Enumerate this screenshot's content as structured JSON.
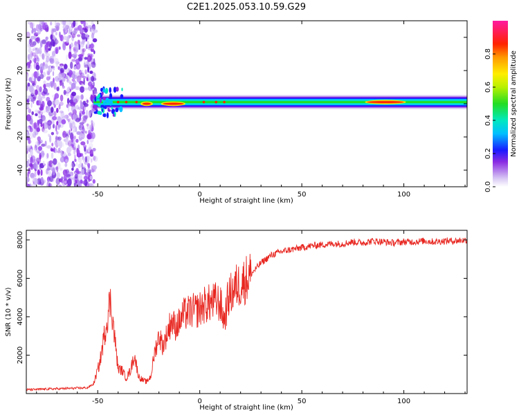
{
  "chart_data": [
    {
      "type": "heatmap",
      "title": "C2E1.2025.053.10.59.G29",
      "xlabel": "Height of straight line (km)",
      "ylabel": "Frequency (Hz)",
      "xlim": [
        -85,
        131
      ],
      "ylim": [
        -50,
        50
      ],
      "xticks": [
        -50,
        0,
        50,
        100
      ],
      "yticks": [
        -40,
        -20,
        0,
        20,
        40
      ],
      "colorbar": {
        "label": "Normalized spectral amplitude",
        "range": [
          0,
          1
        ],
        "ticks": [
          "0.0",
          "0.2",
          "0.4",
          "0.6",
          "0.8"
        ]
      },
      "features": {
        "noise_region_x": [
          -85,
          -51
        ],
        "signal_ridge_x": [
          -52,
          131
        ],
        "signal_ridge_freq": 1,
        "peak_segments": [
          {
            "x": [
              -28,
              -24
            ],
            "freq": 0,
            "amplitude": 0.95
          },
          {
            "x": [
              -18,
              -8
            ],
            "freq": 0,
            "amplitude": 0.9
          },
          {
            "x": [
              82,
              100
            ],
            "freq": 1,
            "amplitude": 0.92
          }
        ]
      }
    },
    {
      "type": "line",
      "xlabel": "Height of straight line (km)",
      "ylabel": "SNR (10 * v/v)",
      "xlim": [
        -85,
        131
      ],
      "ylim": [
        0,
        8500
      ],
      "xticks": [
        -50,
        0,
        50,
        100
      ],
      "yticks": [
        2000,
        4000,
        6000,
        8000
      ],
      "series": [
        {
          "name": "SNR",
          "color": "#e8251f",
          "x": [
            -85,
            -70,
            -55,
            -52,
            -49,
            -46,
            -44,
            -43,
            -42,
            -40,
            -38,
            -36,
            -34,
            -32,
            -30,
            -28,
            -26,
            -24,
            -22,
            -20,
            -18,
            -16,
            -14,
            -12,
            -10,
            -8,
            -6,
            -4,
            -2,
            0,
            2,
            5,
            8,
            10,
            12,
            14,
            16,
            18,
            20,
            25,
            30,
            35,
            40,
            45,
            50,
            55,
            60,
            65,
            70,
            75,
            80,
            85,
            90,
            95,
            100,
            105,
            110,
            115,
            120,
            125,
            131
          ],
          "values": [
            200,
            250,
            300,
            500,
            1600,
            3500,
            4800,
            4300,
            3200,
            1300,
            1200,
            800,
            1200,
            2000,
            900,
            700,
            600,
            900,
            2200,
            3000,
            2500,
            3100,
            3800,
            3500,
            3700,
            4100,
            4200,
            4300,
            4300,
            4400,
            4600,
            4700,
            4800,
            4700,
            3800,
            5000,
            5300,
            5600,
            5700,
            6200,
            6800,
            7200,
            7400,
            7500,
            7600,
            7700,
            7750,
            7800,
            7800,
            7900,
            7850,
            7950,
            7900,
            7850,
            7900,
            7900,
            7950,
            7900,
            7950,
            7950,
            8000
          ]
        }
      ]
    }
  ]
}
